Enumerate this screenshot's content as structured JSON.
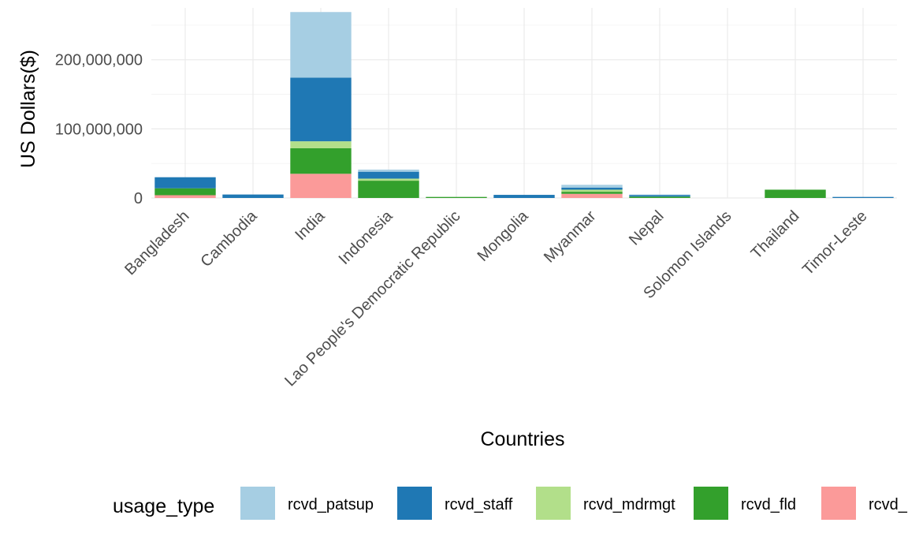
{
  "chart_data": {
    "type": "bar",
    "stacked": true,
    "xlabel": "Countries",
    "ylabel": "US Dollars($)",
    "ylim": [
      0,
      275000000
    ],
    "y_ticks": [
      0,
      100000000,
      200000000
    ],
    "y_tick_labels": [
      "0",
      "100,000,000",
      "200,000,000"
    ],
    "grid": true,
    "categories": [
      "Bangladesh",
      "Cambodia",
      "India",
      "Indonesia",
      "Lao People's Democratic Republic",
      "Mongolia",
      "Myanmar",
      "Nepal",
      "Solomon Islands",
      "Thailand",
      "Timor-Leste"
    ],
    "legend": {
      "title": "usage_type",
      "position": "bottom"
    },
    "series": [
      {
        "name": "rcvd_patsup",
        "color": "#A6CEE3",
        "values": [
          0,
          0,
          95000000,
          3000000,
          0,
          0,
          4000000,
          500000,
          0,
          0,
          0
        ]
      },
      {
        "name": "rcvd_staff",
        "color": "#1F78B4",
        "values": [
          16000000,
          5000000,
          92000000,
          10000000,
          0,
          4500000,
          3000000,
          2500000,
          0,
          0,
          1500000
        ]
      },
      {
        "name": "rcvd_mdrmgt",
        "color": "#B2DF8A",
        "values": [
          0,
          0,
          10000000,
          3000000,
          0,
          0,
          3000000,
          0,
          0,
          0,
          0
        ]
      },
      {
        "name": "rcvd_fld",
        "color": "#33A02C",
        "values": [
          10000000,
          0,
          37000000,
          25000000,
          1500000,
          0,
          3000000,
          2000000,
          0,
          12000000,
          0
        ]
      },
      {
        "name": "rcvd_",
        "color": "#FB9A99",
        "values": [
          4000000,
          0,
          35000000,
          0,
          0,
          0,
          6000000,
          0,
          0,
          0,
          0
        ]
      }
    ]
  }
}
